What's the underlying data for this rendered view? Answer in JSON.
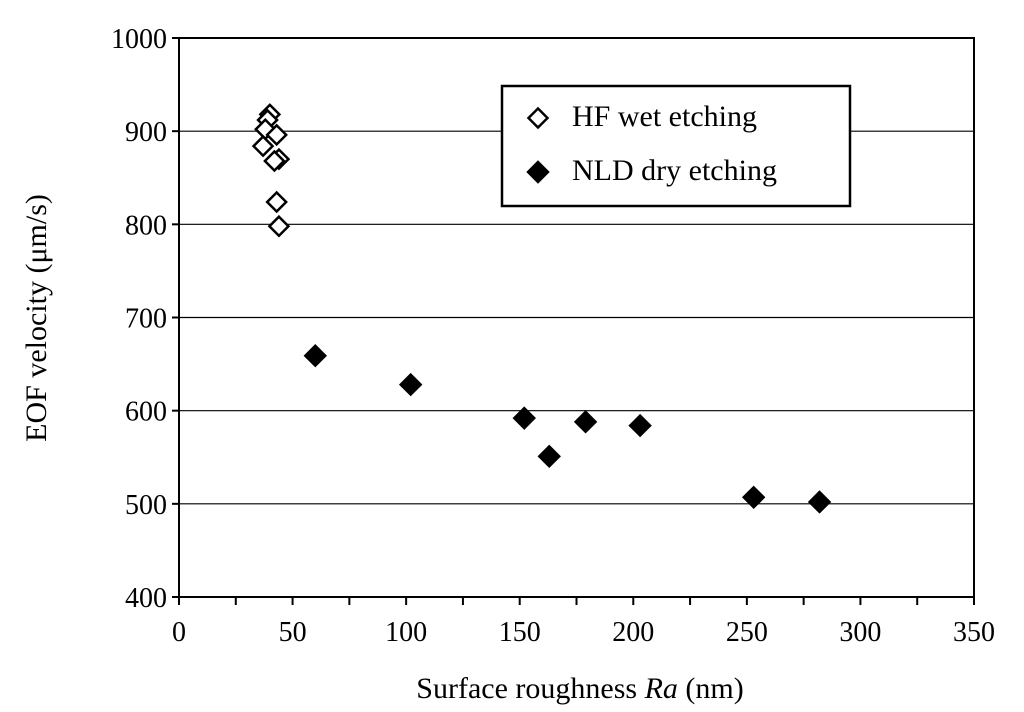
{
  "chart_data": {
    "type": "scatter",
    "title": "",
    "xlabel": {
      "prefix": "Surface roughness ",
      "italic": "Ra",
      "suffix": " (nm)"
    },
    "ylabel": "EOF velocity (μm/s)",
    "xlim": [
      0,
      350
    ],
    "ylim": [
      400,
      1000
    ],
    "xticks": [
      "0",
      "50",
      "100",
      "150",
      "200",
      "250",
      "300",
      "350"
    ],
    "yticks": [
      "400",
      "500",
      "600",
      "700",
      "800",
      "900",
      "1000"
    ],
    "grid": "horizontal",
    "legend_position": "top-right",
    "series": [
      {
        "name": "HF wet etching",
        "marker": "open-diamond",
        "color": "#000000",
        "points": [
          {
            "x": 40,
            "y": 918
          },
          {
            "x": 39,
            "y": 912
          },
          {
            "x": 38,
            "y": 902
          },
          {
            "x": 43,
            "y": 896
          },
          {
            "x": 37,
            "y": 884
          },
          {
            "x": 44,
            "y": 870
          },
          {
            "x": 42,
            "y": 868
          },
          {
            "x": 43,
            "y": 824
          },
          {
            "x": 44,
            "y": 798
          }
        ]
      },
      {
        "name": "NLD dry etching",
        "marker": "filled-diamond",
        "color": "#000000",
        "points": [
          {
            "x": 60,
            "y": 659
          },
          {
            "x": 102,
            "y": 628
          },
          {
            "x": 152,
            "y": 592
          },
          {
            "x": 163,
            "y": 551
          },
          {
            "x": 179,
            "y": 588
          },
          {
            "x": 203,
            "y": 584
          },
          {
            "x": 253,
            "y": 507
          },
          {
            "x": 282,
            "y": 502
          }
        ]
      }
    ]
  }
}
